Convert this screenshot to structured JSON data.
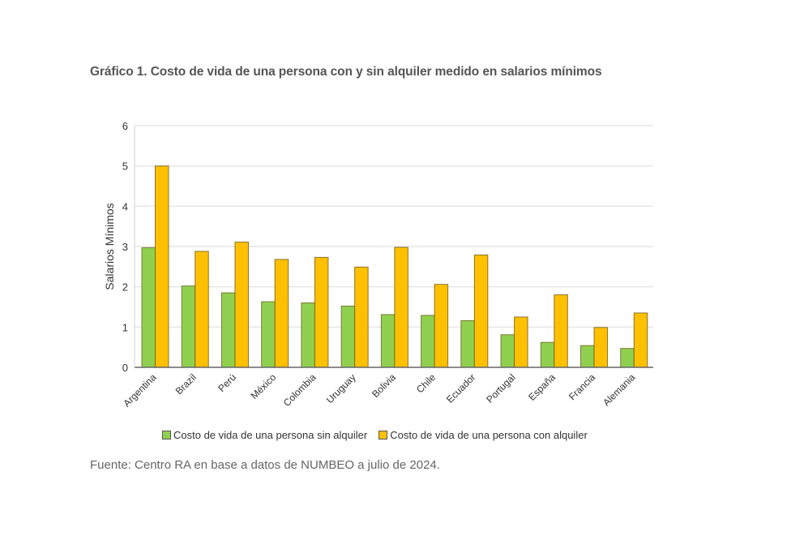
{
  "chart_data": {
    "type": "bar",
    "title": "Gráfico 1. Costo de vida de una persona con y sin alquiler medido en salarios mínimos",
    "xlabel": "",
    "ylabel": "Salarios Mínimos",
    "ylim": [
      0,
      6
    ],
    "yticks": [
      "0",
      "1",
      "2",
      "3",
      "4",
      "5",
      "6"
    ],
    "grid": true,
    "legend_position": "bottom",
    "categories": [
      "Argentina",
      "Brazil",
      "Perú",
      "México",
      "Colombia",
      "Uruguay",
      "Bolivia",
      "Chile",
      "Ecuador",
      "Portugal",
      "España",
      "Francia",
      "Alemania"
    ],
    "series": [
      {
        "name": "Costo de vida de una persona sin alquiler",
        "color": "#8fd14f",
        "values": [
          2.97,
          2.02,
          1.85,
          1.63,
          1.6,
          1.52,
          1.31,
          1.29,
          1.16,
          0.81,
          0.62,
          0.54,
          0.47
        ]
      },
      {
        "name": "Costo de vida de una persona con alquiler",
        "color": "#ffc000",
        "values": [
          5.0,
          2.88,
          3.11,
          2.68,
          2.73,
          2.49,
          2.98,
          2.06,
          2.79,
          1.25,
          1.8,
          0.99,
          1.35
        ]
      }
    ]
  },
  "source": "Fuente: Centro RA en base a datos de NUMBEO a julio de 2024."
}
